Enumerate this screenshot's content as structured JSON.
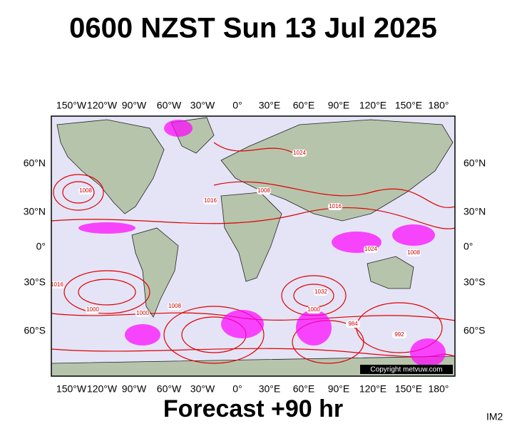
{
  "title": "0600 NZST Sun 13 Jul 2025",
  "footer": "Forecast +90 hr",
  "id_label": "IM2",
  "copyright": "Copyright metvuw.com",
  "lon_labels": [
    "150°W",
    "120°W",
    "90°W",
    "60°W",
    "30°W",
    "0°",
    "30°E",
    "60°E",
    "90°E",
    "120°E",
    "150°E",
    "180°"
  ],
  "lat_labels": [
    "60°N",
    "30°N",
    "0°",
    "30°S",
    "60°S"
  ],
  "isobar_labels": [
    "1008",
    "1016",
    "1024",
    "1008",
    "1016",
    "1000",
    "1008",
    "1000",
    "1032",
    "1024",
    "1000",
    "984",
    "1016",
    "992",
    "1008"
  ]
}
